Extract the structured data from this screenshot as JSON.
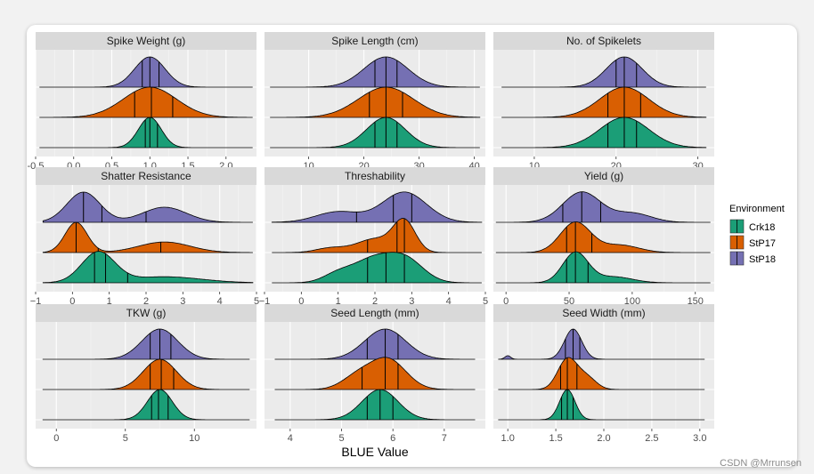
{
  "watermark": "CSDN @Mrrunsen",
  "chart_data": {
    "type": "ridgeline",
    "xlabel": "BLUE Value",
    "legend": {
      "title": "Environment",
      "placement": "right",
      "entries": [
        {
          "name": "Crk18",
          "color": "#1b9e77"
        },
        {
          "name": "StP17",
          "color": "#d95f02"
        },
        {
          "name": "StP18",
          "color": "#7570b3"
        }
      ]
    },
    "row_order_top_to_bottom": [
      "StP18",
      "StP17",
      "Crk18"
    ],
    "panels": [
      {
        "title": "Spike Weight (g)",
        "xlim": [
          -0.5,
          2.4
        ],
        "ticks": [
          -0.5,
          0.0,
          0.5,
          1.0,
          1.5,
          2.0
        ],
        "tick_labels": [
          "-0.5",
          "0.0",
          "0.5",
          "1.0",
          "1.5",
          "2.0"
        ],
        "series": {
          "StP18": {
            "range": [
              -0.45,
              2.35
            ],
            "components": [
              [
                1.0,
                0.2,
                1
              ]
            ],
            "quartiles": [
              0.9,
              1.0,
              1.12
            ]
          },
          "StP17": {
            "range": [
              -0.45,
              2.35
            ],
            "components": [
              [
                1.0,
                0.35,
                1
              ]
            ],
            "quartiles": [
              0.8,
              1.02,
              1.3
            ]
          },
          "Crk18": {
            "range": [
              -0.45,
              2.35
            ],
            "components": [
              [
                1.0,
                0.15,
                1
              ]
            ],
            "quartiles": [
              0.94,
              1.0,
              1.1
            ]
          }
        }
      },
      {
        "title": "Spike Length (cm)",
        "xlim": [
          2,
          42
        ],
        "ticks": [
          10,
          20,
          30,
          40
        ],
        "tick_labels": [
          "10",
          "20",
          "30",
          "40"
        ],
        "series": {
          "StP18": {
            "range": [
              3,
              41
            ],
            "components": [
              [
                24,
                4,
                1
              ]
            ],
            "quartiles": [
              22,
              24,
              26
            ]
          },
          "StP17": {
            "range": [
              3,
              41
            ],
            "components": [
              [
                24,
                5,
                1
              ]
            ],
            "quartiles": [
              21,
              24,
              27
            ]
          },
          "Crk18": {
            "range": [
              3,
              41
            ],
            "components": [
              [
                24,
                3.5,
                1
              ]
            ],
            "quartiles": [
              22,
              24,
              26
            ]
          }
        }
      },
      {
        "title": "No. of Spikelets",
        "xlim": [
          5,
          32
        ],
        "ticks": [
          10,
          20,
          30
        ],
        "tick_labels": [
          "10",
          "20",
          "30"
        ],
        "series": {
          "StP18": {
            "range": [
              6,
              31
            ],
            "components": [
              [
                21,
                2.2,
                1
              ]
            ],
            "quartiles": [
              20,
              21,
              22.5
            ]
          },
          "StP17": {
            "range": [
              6,
              31
            ],
            "components": [
              [
                21,
                3,
                1
              ]
            ],
            "quartiles": [
              19,
              21,
              23
            ]
          },
          "Crk18": {
            "range": [
              6,
              31
            ],
            "components": [
              [
                21,
                3,
                1
              ]
            ],
            "quartiles": [
              19,
              21,
              22.5
            ]
          }
        }
      },
      {
        "title": "Shatter Resistance",
        "xlim": [
          -1,
          5
        ],
        "ticks": [
          -1,
          0,
          1,
          2,
          3,
          4,
          5
        ],
        "tick_labels": [
          "−1",
          "0",
          "1",
          "2",
          "3",
          "4",
          "5"
        ],
        "series": {
          "StP18": {
            "range": [
              -0.8,
              4.9
            ],
            "components": [
              [
                0.3,
                0.45,
                1
              ],
              [
                2.5,
                0.6,
                0.5
              ]
            ],
            "quartiles": [
              0.3,
              0.8,
              2.0
            ]
          },
          "StP17": {
            "range": [
              -0.8,
              4.9
            ],
            "components": [
              [
                0.1,
                0.3,
                1
              ],
              [
                2.5,
                0.7,
                0.35
              ]
            ],
            "quartiles": [
              0.1,
              0.7,
              2.4
            ]
          },
          "Crk18": {
            "range": [
              -0.8,
              4.9
            ],
            "components": [
              [
                0.7,
                0.45,
                1
              ],
              [
                2.5,
                1.0,
                0.2
              ]
            ],
            "quartiles": [
              0.6,
              0.9,
              1.5
            ]
          }
        }
      },
      {
        "title": "Threshability",
        "xlim": [
          -1,
          5
        ],
        "ticks": [
          -1,
          0,
          1,
          2,
          3,
          4,
          5
        ],
        "tick_labels": [
          "−1",
          "0",
          "1",
          "2",
          "3",
          "4",
          "5"
        ],
        "series": {
          "StP18": {
            "range": [
              -0.8,
              4.9
            ],
            "components": [
              [
                2.8,
                0.6,
                1
              ],
              [
                1.0,
                0.6,
                0.35
              ]
            ],
            "quartiles": [
              1.5,
              2.5,
              3.0
            ]
          },
          "StP17": {
            "range": [
              -0.8,
              4.9
            ],
            "components": [
              [
                2.8,
                0.3,
                1
              ],
              [
                2.0,
                0.5,
                0.45
              ],
              [
                0.8,
                0.4,
                0.15
              ]
            ],
            "quartiles": [
              1.8,
              2.6,
              2.8
            ]
          },
          "Crk18": {
            "range": [
              -0.8,
              4.9
            ],
            "components": [
              [
                2.8,
                0.5,
                0.8
              ],
              [
                1.9,
                0.5,
                0.7
              ],
              [
                1.0,
                0.4,
                0.3
              ]
            ],
            "quartiles": [
              1.8,
              2.3,
              2.8
            ]
          }
        }
      },
      {
        "title": "Yield (g)",
        "xlim": [
          -10,
          165
        ],
        "ticks": [
          0,
          50,
          100,
          150
        ],
        "tick_labels": [
          "0",
          "50",
          "100",
          "150"
        ],
        "series": {
          "StP18": {
            "range": [
              -8,
              162
            ],
            "components": [
              [
                60,
                15,
                1
              ],
              [
                100,
                15,
                0.3
              ]
            ],
            "quartiles": [
              45,
              60,
              75
            ]
          },
          "StP17": {
            "range": [
              -8,
              162
            ],
            "components": [
              [
                55,
                12,
                1
              ],
              [
                90,
                15,
                0.25
              ]
            ],
            "quartiles": [
              48,
              55,
              68
            ]
          },
          "Crk18": {
            "range": [
              -8,
              162
            ],
            "components": [
              [
                55,
                10,
                1
              ],
              [
                85,
                15,
                0.2
              ]
            ],
            "quartiles": [
              48,
              55,
              65
            ]
          }
        }
      },
      {
        "title": "TKW (g)",
        "xlim": [
          -1.5,
          14.5
        ],
        "ticks": [
          0,
          5,
          10
        ],
        "tick_labels": [
          "0",
          "5",
          "10"
        ],
        "series": {
          "StP18": {
            "range": [
              -1,
              14
            ],
            "components": [
              [
                7.5,
                1.3,
                1
              ]
            ],
            "quartiles": [
              6.8,
              7.5,
              8.3
            ]
          },
          "StP17": {
            "range": [
              -1,
              14
            ],
            "components": [
              [
                7.5,
                1.2,
                1
              ]
            ],
            "quartiles": [
              6.8,
              7.6,
              8.5
            ]
          },
          "Crk18": {
            "range": [
              -1,
              14
            ],
            "components": [
              [
                7.5,
                0.9,
                1
              ]
            ],
            "quartiles": [
              6.9,
              7.4,
              8.1
            ]
          }
        }
      },
      {
        "title": "Seed Length (mm)",
        "xlim": [
          3.5,
          7.8
        ],
        "ticks": [
          4,
          5,
          6,
          7
        ],
        "tick_labels": [
          "4",
          "5",
          "6",
          "7"
        ],
        "series": {
          "StP18": {
            "range": [
              3.7,
              7.6
            ],
            "components": [
              [
                5.85,
                0.4,
                1
              ]
            ],
            "quartiles": [
              5.5,
              5.85,
              6.1
            ]
          },
          "StP17": {
            "range": [
              3.7,
              7.6
            ],
            "components": [
              [
                5.9,
                0.35,
                1
              ],
              [
                5.3,
                0.3,
                0.4
              ]
            ],
            "quartiles": [
              5.4,
              5.85,
              6.1
            ]
          },
          "Crk18": {
            "range": [
              3.7,
              7.6
            ],
            "components": [
              [
                5.75,
                0.35,
                1
              ]
            ],
            "quartiles": [
              5.5,
              5.75,
              6.0
            ]
          }
        }
      },
      {
        "title": "Seed Width (mm)",
        "xlim": [
          0.85,
          3.15
        ],
        "ticks": [
          1.0,
          1.5,
          2.0,
          2.5,
          3.0
        ],
        "tick_labels": [
          "1.0",
          "1.5",
          "2.0",
          "2.5",
          "3.0"
        ],
        "series": {
          "StP18": {
            "range": [
              0.9,
              3.05
            ],
            "components": [
              [
                1.68,
                0.09,
                1
              ],
              [
                1.0,
                0.03,
                0.12
              ]
            ],
            "quartiles": [
              1.6,
              1.68,
              1.75
            ]
          },
          "StP17": {
            "range": [
              0.9,
              3.05
            ],
            "components": [
              [
                1.62,
                0.1,
                1
              ],
              [
                1.82,
                0.1,
                0.4
              ]
            ],
            "quartiles": [
              1.55,
              1.62,
              1.72
            ]
          },
          "Crk18": {
            "range": [
              0.9,
              3.05
            ],
            "components": [
              [
                1.62,
                0.08,
                1
              ]
            ],
            "quartiles": [
              1.56,
              1.62,
              1.68
            ]
          }
        }
      }
    ]
  }
}
